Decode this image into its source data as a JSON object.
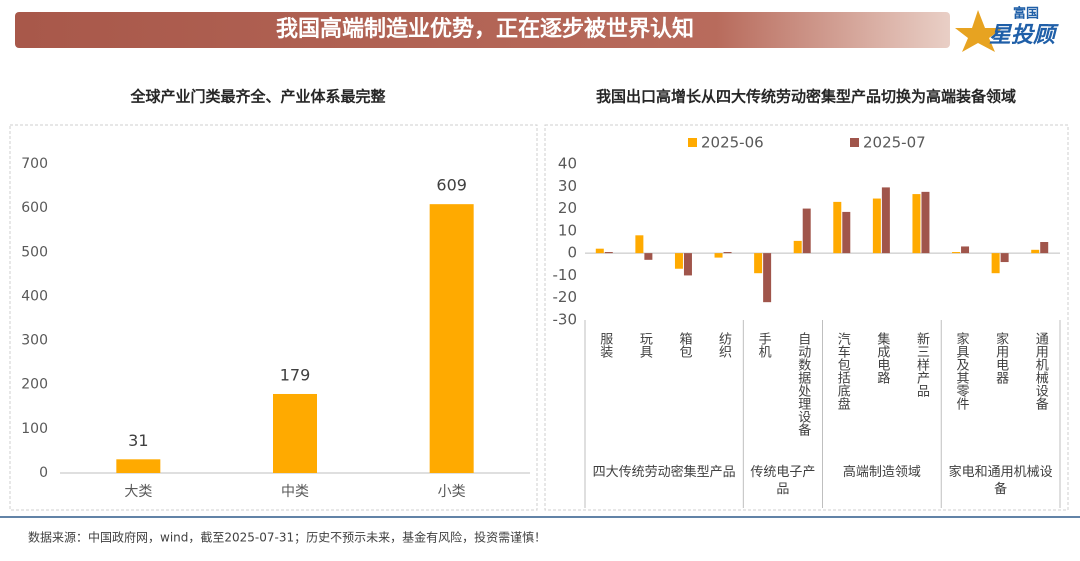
{
  "header": {
    "title": "我国高端制造业优势，正在逐步被世界认知",
    "logo_top": "富国",
    "logo_main": "星投顾"
  },
  "footer": {
    "source": "数据来源：中国政府网，wind，截至2025-07-31；历史不预示未来，基金有风险，投资需谨慎！"
  },
  "chart_data": [
    {
      "type": "bar",
      "title": "全球产业门类最齐全、产业体系最完整",
      "categories": [
        "大类",
        "中类",
        "小类"
      ],
      "values": [
        31,
        179,
        609
      ],
      "color": "#FFAA00",
      "ylim": [
        0,
        700
      ],
      "yticks": [
        0,
        100,
        200,
        300,
        400,
        500,
        600,
        700
      ],
      "grid": false
    },
    {
      "type": "grouped_bar",
      "title": "我国出口高增长从四大传统劳动密集型产品切换为高端装备领域",
      "groups": [
        {
          "name": "四大传统劳动密集型产品",
          "categories": [
            "服装",
            "玩具",
            "箱包",
            "纺织"
          ]
        },
        {
          "name": "传统电子产品",
          "categories": [
            "手机",
            "自动数据处理设备"
          ]
        },
        {
          "name": "高端制造领域",
          "categories": [
            "汽车包括底盘",
            "集成电路",
            "新三样产品"
          ]
        },
        {
          "name": "家电和通用机械设备",
          "categories": [
            "家具及其零件",
            "家用电器",
            "通用机械设备"
          ]
        }
      ],
      "series": [
        {
          "name": "2025-06",
          "color": "#FFAA00",
          "values": [
            2,
            8,
            -7,
            -2,
            -9,
            5.5,
            23,
            24.5,
            26.5,
            0.5,
            -9,
            1.5
          ]
        },
        {
          "name": "2025-07",
          "color": "#A0554B",
          "values": [
            0.5,
            -3,
            -10,
            0.5,
            -22,
            20,
            18.5,
            29.5,
            27.5,
            3,
            -4,
            5
          ]
        }
      ],
      "ylim": [
        -30,
        40
      ],
      "yticks": [
        -30,
        -20,
        -10,
        0,
        10,
        20,
        30,
        40
      ],
      "legend": "top"
    }
  ]
}
